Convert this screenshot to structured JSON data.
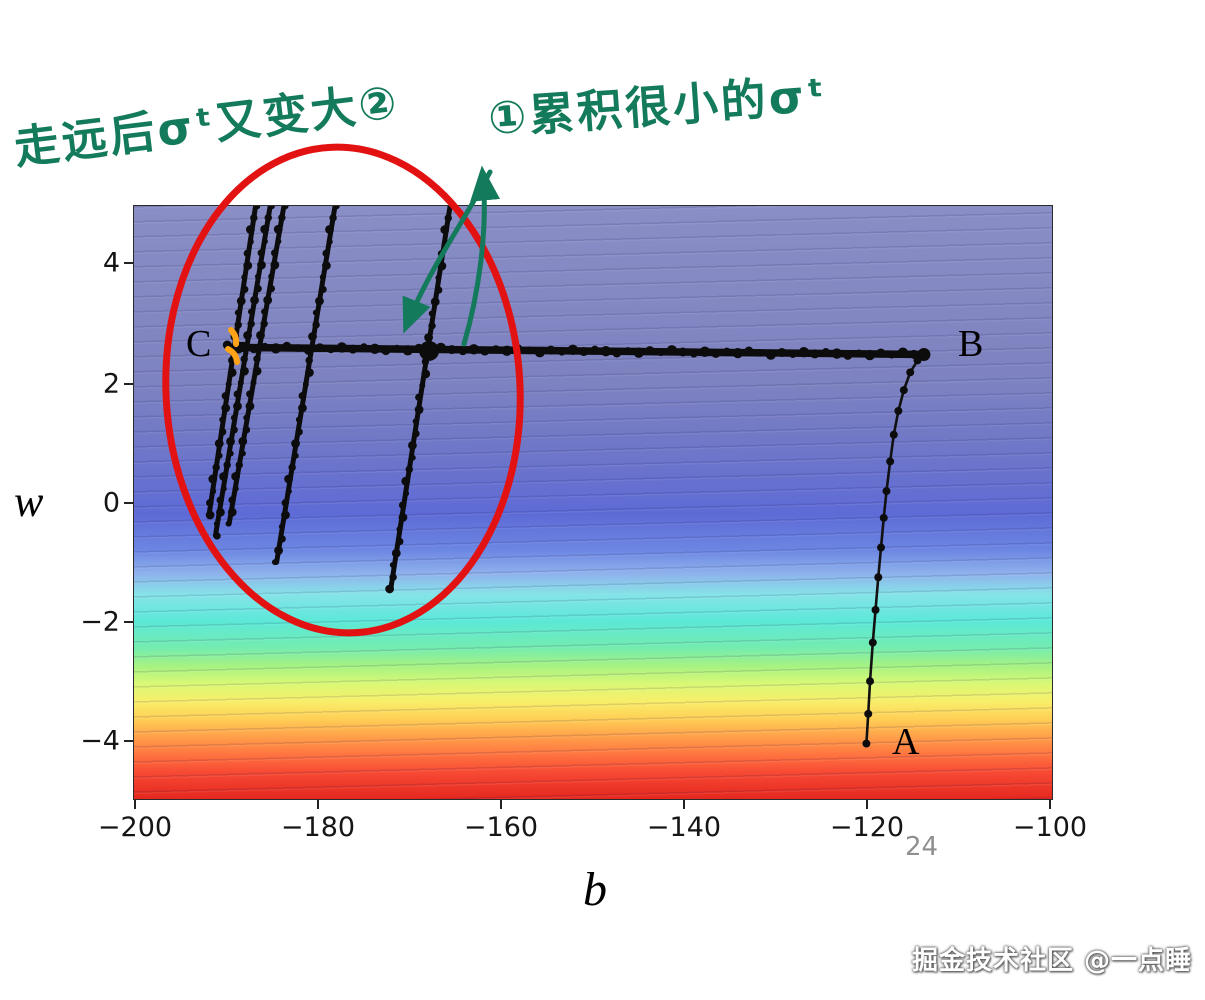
{
  "page": {
    "page_number": "24",
    "watermark": "掘金技术社区 @一点睡"
  },
  "annotations": {
    "left_note": "走远后σᵗ又变大②",
    "right_note": "①累积很小的σᵗ",
    "ink_color": "#147a5c",
    "circle_color": "#e31212",
    "marker_color": "#ffa418",
    "red_circle_meaning": "circles the oscillating trajectory region near C",
    "orange_marker_meaning": "highlight marks at point C"
  },
  "chart_data": {
    "type": "heatmap",
    "description": "Filled-contour error surface (loss landscape) with a gradient-descent trajectory: from A up to B, then left along the valley to C, oscillating diagonal spikes near C",
    "xlabel": "b",
    "ylabel": "w",
    "xlim": [
      -200,
      -100
    ],
    "ylim": [
      -5,
      5
    ],
    "x_ticks": [
      "−200",
      "−180",
      "−160",
      "−140",
      "−120",
      "−100"
    ],
    "y_ticks": [
      "4",
      "2",
      "0",
      "−2",
      "−4"
    ],
    "grid": false,
    "legend": "none",
    "points": [
      {
        "label": "A",
        "b": -120,
        "w": -4.05
      },
      {
        "label": "B",
        "b": -113.5,
        "w": 2.5
      },
      {
        "label": "C",
        "b": -192,
        "w": 2.6
      }
    ],
    "trajectory": {
      "path_A_to_B": [
        [
          -120,
          -4.05
        ],
        [
          -119.8,
          -3.55
        ],
        [
          -119.6,
          -3.0
        ],
        [
          -119.3,
          -2.35
        ],
        [
          -119.0,
          -1.8
        ],
        [
          -118.7,
          -1.25
        ],
        [
          -118.4,
          -0.75
        ],
        [
          -118.1,
          -0.25
        ],
        [
          -117.8,
          0.2
        ],
        [
          -117.4,
          0.7
        ],
        [
          -117.0,
          1.15
        ],
        [
          -116.5,
          1.55
        ],
        [
          -115.9,
          1.9
        ],
        [
          -115.2,
          2.2
        ],
        [
          -114.4,
          2.4
        ],
        [
          -113.6,
          2.5
        ]
      ],
      "path_B_to_C": [
        [
          -113.6,
          2.5
        ],
        [
          -189.5,
          2.62
        ]
      ],
      "oscillation_strokes": [
        [
          [
            -186.9,
            5.0
          ],
          [
            -192.0,
            -0.2
          ]
        ],
        [
          [
            -185.3,
            5.0
          ],
          [
            -191.3,
            -0.55
          ]
        ],
        [
          [
            -183.8,
            5.0
          ],
          [
            -189.8,
            -0.35
          ]
        ],
        [
          [
            -178.2,
            5.0
          ],
          [
            -184.6,
            -1.0
          ]
        ],
        [
          [
            -165.6,
            5.0
          ],
          [
            -172.1,
            -1.45
          ]
        ]
      ],
      "thick_spots": [
        [
          -167.9,
          2.56
        ],
        [
          -113.7,
          2.5
        ],
        [
          -188.8,
          2.62
        ],
        [
          -190.0,
          2.66
        ]
      ]
    },
    "colormap_top_to_bottom": [
      {
        "stop": 0.0,
        "color": "#8a8ec6"
      },
      {
        "stop": 0.3,
        "color": "#7d82c0"
      },
      {
        "stop": 0.42,
        "color": "#6d76c9"
      },
      {
        "stop": 0.52,
        "color": "#5e6bd6"
      },
      {
        "stop": 0.58,
        "color": "#6c86e2"
      },
      {
        "stop": 0.62,
        "color": "#8fb2ec"
      },
      {
        "stop": 0.655,
        "color": "#86e3e8"
      },
      {
        "stop": 0.7,
        "color": "#5ce8d8"
      },
      {
        "stop": 0.745,
        "color": "#74ecb0"
      },
      {
        "stop": 0.775,
        "color": "#a5f283"
      },
      {
        "stop": 0.805,
        "color": "#d8f876"
      },
      {
        "stop": 0.835,
        "color": "#f8ef6a"
      },
      {
        "stop": 0.865,
        "color": "#ffcf56"
      },
      {
        "stop": 0.895,
        "color": "#ffa04a"
      },
      {
        "stop": 0.925,
        "color": "#ff7440"
      },
      {
        "stop": 0.955,
        "color": "#f74a34"
      },
      {
        "stop": 1.0,
        "color": "#e5271f"
      }
    ]
  }
}
